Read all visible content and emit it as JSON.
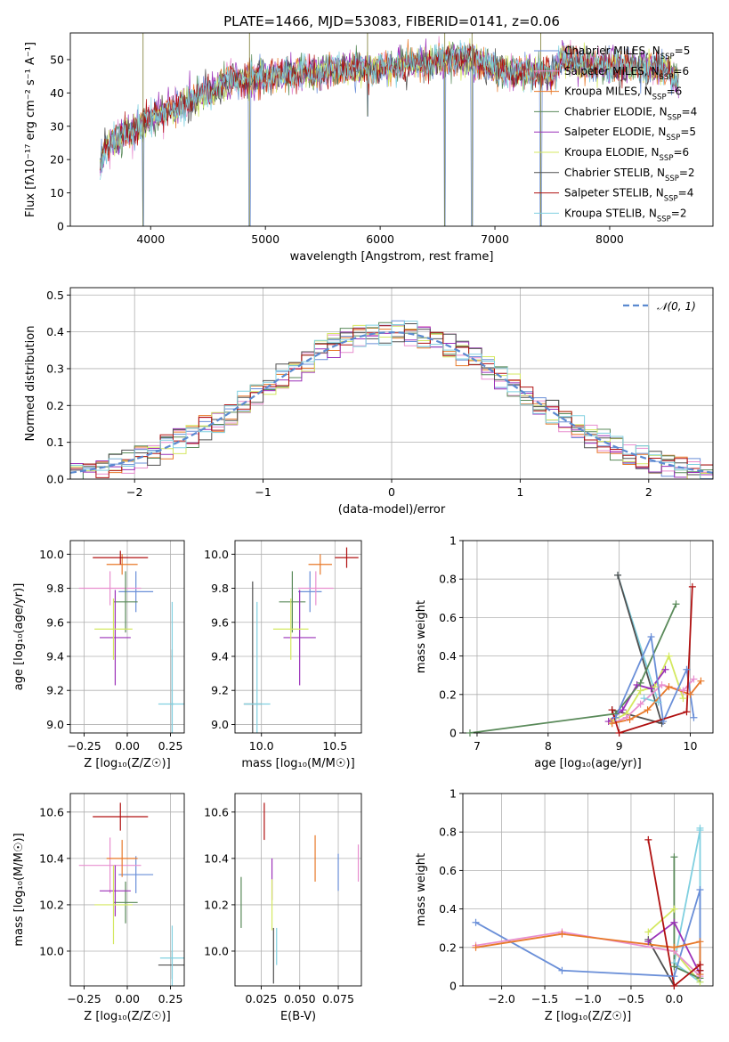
{
  "figure_title": "PLATE=1466, MJD=53083, FIBERID=0141, z=0.06",
  "colors": {
    "c0": "#6a8fd8",
    "c1": "#e88fcf",
    "c2": "#e8792a",
    "c3": "#5a8a5a",
    "c4": "#9b30b8",
    "c5": "#d4e860",
    "c6": "#505050",
    "c7": "#b01010",
    "c8": "#80d0e0"
  },
  "chart_data": [
    {
      "id": "spectrum",
      "type": "line",
      "title": "PLATE=1466, MJD=53083, FIBERID=0141, z=0.06",
      "xlabel": "wavelength [Angstrom, rest frame]",
      "ylabel": "Flux [fλ10⁻¹⁷ erg cm⁻² s⁻¹ A⁻¹]",
      "xlim": [
        3300,
        8900
      ],
      "ylim": [
        0,
        58
      ],
      "xticks": [
        4000,
        5000,
        6000,
        7000,
        8000
      ],
      "yticks": [
        0,
        10,
        20,
        30,
        40,
        50
      ],
      "grid": false,
      "legend_position": "right",
      "series": [
        {
          "name": "Chabrier MILES, N_SSP=5",
          "color_key": "c0"
        },
        {
          "name": "Salpeter MILES, N_SSP=6",
          "color_key": "c1"
        },
        {
          "name": "Kroupa MILES, N_SSP=6",
          "color_key": "c2"
        },
        {
          "name": "Chabrier ELODIE, N_SSP=4",
          "color_key": "c3"
        },
        {
          "name": "Salpeter ELODIE, N_SSP=5",
          "color_key": "c4"
        },
        {
          "name": "Kroupa ELODIE, N_SSP=6",
          "color_key": "c5"
        },
        {
          "name": "Chabrier STELIB, N_SSP=2",
          "color_key": "c6"
        },
        {
          "name": "Salpeter STELIB, N_SSP=4",
          "color_key": "c7"
        },
        {
          "name": "Kroupa STELIB, N_SSP=2",
          "color_key": "c8"
        }
      ],
      "envelope": {
        "x": [
          3560,
          3600,
          3700,
          3800,
          3900,
          4000,
          4100,
          4200,
          4300,
          4400,
          4500,
          4600,
          4700,
          4800,
          4900,
          5000,
          5200,
          5400,
          5600,
          5800,
          6000,
          6200,
          6400,
          6600,
          6800,
          7000,
          7200,
          7400,
          7500,
          7600,
          7800,
          8000,
          8200,
          8400,
          8500,
          8600
        ],
        "y": [
          17,
          24,
          26,
          28,
          30,
          32,
          34,
          35,
          37,
          39,
          40,
          42,
          44,
          44,
          44,
          45,
          46,
          46,
          47,
          47,
          48,
          48,
          49,
          50,
          50,
          47,
          46,
          46,
          45,
          51,
          48,
          48,
          48,
          47,
          47,
          43
        ]
      },
      "absorption_lines": [
        {
          "x": 3934,
          "depth": 0
        },
        {
          "x": 4861,
          "depth": 0
        },
        {
          "x": 5890,
          "depth": 33
        },
        {
          "x": 6563,
          "depth": 0
        },
        {
          "x": 6800,
          "depth": 0
        },
        {
          "x": 7400,
          "depth": 0
        }
      ]
    },
    {
      "id": "residuals",
      "type": "histogram",
      "xlabel": "(data-model)/error",
      "ylabel": "Normed distribution",
      "xlim": [
        -2.5,
        2.5
      ],
      "ylim": [
        0,
        0.52
      ],
      "xticks": [
        -2,
        -1,
        0,
        1,
        2
      ],
      "yticks": [
        0.0,
        0.1,
        0.2,
        0.3,
        0.4,
        0.5
      ],
      "grid": true,
      "legend": {
        "label": "𝒩(0, 1)",
        "position": "top-right"
      },
      "bin_width": 0.1,
      "reference_curve": "normal(0,1)"
    },
    {
      "id": "z-age",
      "type": "errorbar",
      "xlabel": "Z [log₁₀(Z/Z☉)]",
      "ylabel": "age  [log₁₀(age/yr)]",
      "xlim": [
        -0.33,
        0.33
      ],
      "ylim": [
        8.95,
        10.08
      ],
      "xticks": [
        -0.25,
        0.0,
        0.25
      ],
      "xticklabels": [
        "−0.25",
        "0.00",
        "0.25"
      ],
      "yticks": [
        9.0,
        9.2,
        9.4,
        9.6,
        9.8,
        10.0
      ],
      "yticklabels": [
        "9.0",
        "9.2",
        "9.4",
        "9.6",
        "9.8",
        "10.0"
      ],
      "grid": true,
      "points": [
        {
          "c": "c0",
          "x": 0.05,
          "y": 9.78,
          "xerr": 0.1,
          "yerr": 0.12
        },
        {
          "c": "c1",
          "x": -0.1,
          "y": 9.8,
          "xerr": 0.18,
          "yerr": 0.1
        },
        {
          "c": "c2",
          "x": -0.03,
          "y": 9.94,
          "xerr": 0.09,
          "yerr": 0.06
        },
        {
          "c": "c3",
          "x": -0.01,
          "y": 9.72,
          "xerr": 0.07,
          "yerr": 0.18
        },
        {
          "c": "c4",
          "x": -0.07,
          "y": 9.51,
          "xerr": 0.09,
          "yerr": 0.28
        },
        {
          "c": "c5",
          "x": -0.08,
          "y": 9.56,
          "xerr": 0.11,
          "yerr": 0.18
        },
        {
          "c": "c6",
          "x": 0.26,
          "y": 9.12,
          "xerr": 0.01,
          "yerr": 0.32
        },
        {
          "c": "c7",
          "x": -0.04,
          "y": 9.98,
          "xerr": 0.16,
          "yerr": 0.04
        },
        {
          "c": "c8",
          "x": 0.26,
          "y": 9.12,
          "xerr": 0.08,
          "yerr": 0.6
        }
      ]
    },
    {
      "id": "mass-age",
      "type": "errorbar",
      "xlabel": "mass [log₁₀(M/M☉)]",
      "ylabel": "",
      "xlim": [
        9.82,
        10.68
      ],
      "ylim": [
        8.95,
        10.08
      ],
      "xticks": [
        10.0,
        10.5
      ],
      "xticklabels": [
        "10.0",
        "10.5"
      ],
      "yticks": [
        9.0,
        9.2,
        9.4,
        9.6,
        9.8,
        10.0
      ],
      "yticklabels": [
        "9.0",
        "9.2",
        "9.4",
        "9.6",
        "9.8",
        "10.0"
      ],
      "grid": true,
      "points": [
        {
          "c": "c0",
          "x": 10.33,
          "y": 9.78,
          "xerr": 0.08,
          "yerr": 0.12
        },
        {
          "c": "c1",
          "x": 10.37,
          "y": 9.8,
          "xerr": 0.12,
          "yerr": 0.1
        },
        {
          "c": "c2",
          "x": 10.4,
          "y": 9.94,
          "xerr": 0.08,
          "yerr": 0.06
        },
        {
          "c": "c3",
          "x": 10.21,
          "y": 9.72,
          "xerr": 0.09,
          "yerr": 0.18
        },
        {
          "c": "c4",
          "x": 10.26,
          "y": 9.51,
          "xerr": 0.11,
          "yerr": 0.28
        },
        {
          "c": "c5",
          "x": 10.2,
          "y": 9.56,
          "xerr": 0.12,
          "yerr": 0.18
        },
        {
          "c": "c6",
          "x": 9.94,
          "y": 9.12,
          "xerr": 0.06,
          "yerr": 0.72
        },
        {
          "c": "c7",
          "x": 10.58,
          "y": 9.98,
          "xerr": 0.08,
          "yerr": 0.06
        },
        {
          "c": "c8",
          "x": 9.97,
          "y": 9.12,
          "xerr": 0.09,
          "yerr": 0.6
        }
      ]
    },
    {
      "id": "weight-age",
      "type": "line",
      "xlabel": "age  [log₁₀(age/yr)]",
      "ylabel": "mass weight",
      "xlim": [
        6.8,
        10.32
      ],
      "ylim": [
        0,
        1.0
      ],
      "xticks": [
        7,
        8,
        9,
        10
      ],
      "yticks": [
        0.0,
        0.2,
        0.4,
        0.6,
        0.8,
        1.0
      ],
      "grid": true,
      "series": [
        {
          "c": "c8",
          "x": [
            8.98,
            9.55,
            9.35
          ],
          "y": [
            0.82,
            0.16,
            0.18
          ]
        },
        {
          "c": "c6",
          "x": [
            8.9,
            9.6,
            8.98
          ],
          "y": [
            0.12,
            0.05,
            0.82
          ]
        },
        {
          "c": "c5",
          "x": [
            8.88,
            9.1,
            9.3,
            9.5,
            9.7,
            9.9
          ],
          "y": [
            0.06,
            0.1,
            0.22,
            0.24,
            0.4,
            0.18
          ]
        },
        {
          "c": "c4",
          "x": [
            8.85,
            9.05,
            9.25,
            9.45,
            9.65
          ],
          "y": [
            0.06,
            0.12,
            0.25,
            0.23,
            0.33
          ]
        },
        {
          "c": "c1",
          "x": [
            8.9,
            9.1,
            9.3,
            9.6,
            9.9,
            10.05
          ],
          "y": [
            0.05,
            0.08,
            0.15,
            0.25,
            0.22,
            0.28
          ]
        },
        {
          "c": "c2",
          "x": [
            8.9,
            9.15,
            9.4,
            9.7,
            10.0,
            10.15
          ],
          "y": [
            0.05,
            0.07,
            0.12,
            0.24,
            0.2,
            0.27
          ]
        },
        {
          "c": "c3",
          "x": [
            6.9,
            8.95,
            9.3,
            9.8
          ],
          "y": [
            0.0,
            0.1,
            0.26,
            0.67
          ]
        },
        {
          "c": "c0",
          "x": [
            8.95,
            9.45,
            9.62,
            9.95,
            10.05
          ],
          "y": [
            0.08,
            0.5,
            0.06,
            0.33,
            0.08
          ]
        },
        {
          "c": "c7",
          "x": [
            8.9,
            9.0,
            9.95,
            10.03
          ],
          "y": [
            0.12,
            0.0,
            0.11,
            0.76
          ]
        }
      ]
    },
    {
      "id": "z-mass",
      "type": "errorbar",
      "xlabel": "Z [log₁₀(Z/Z☉)]",
      "ylabel": "mass [log₁₀(M/M☉)]",
      "xlim": [
        -0.33,
        0.33
      ],
      "ylim": [
        9.85,
        10.68
      ],
      "xticks": [
        -0.25,
        0.0,
        0.25
      ],
      "xticklabels": [
        "−0.25",
        "0.00",
        "0.25"
      ],
      "yticks": [
        10.0,
        10.2,
        10.4,
        10.6
      ],
      "yticklabels": [
        "10.0",
        "10.2",
        "10.4",
        "10.6"
      ],
      "grid": true,
      "points": [
        {
          "c": "c0",
          "x": 0.05,
          "y": 10.33,
          "xerr": 0.1,
          "yerr": 0.08
        },
        {
          "c": "c1",
          "x": -0.1,
          "y": 10.37,
          "xerr": 0.18,
          "yerr": 0.12
        },
        {
          "c": "c2",
          "x": -0.03,
          "y": 10.4,
          "xerr": 0.09,
          "yerr": 0.08
        },
        {
          "c": "c3",
          "x": -0.01,
          "y": 10.21,
          "xerr": 0.07,
          "yerr": 0.09
        },
        {
          "c": "c4",
          "x": -0.07,
          "y": 10.26,
          "xerr": 0.09,
          "yerr": 0.11
        },
        {
          "c": "c5",
          "x": -0.08,
          "y": 10.2,
          "xerr": 0.11,
          "yerr": 0.17
        },
        {
          "c": "c6",
          "x": 0.26,
          "y": 9.94,
          "xerr": 0.08,
          "yerr": 0.06
        },
        {
          "c": "c7",
          "x": -0.04,
          "y": 10.58,
          "xerr": 0.16,
          "yerr": 0.06
        },
        {
          "c": "c8",
          "x": 0.26,
          "y": 9.97,
          "xerr": 0.07,
          "yerr": 0.14
        }
      ]
    },
    {
      "id": "ebv-mass",
      "type": "errorbar",
      "xlabel": "E(B-V)",
      "ylabel": "",
      "xlim": [
        0.008,
        0.09
      ],
      "ylim": [
        9.85,
        10.68
      ],
      "xticks": [
        0.025,
        0.05,
        0.075
      ],
      "xticklabels": [
        "0.025",
        "0.050",
        "0.075"
      ],
      "yticks": [
        10.0,
        10.2,
        10.4,
        10.6
      ],
      "yticklabels": [
        "10.0",
        "10.2",
        "10.4",
        "10.6"
      ],
      "grid": true,
      "points": [
        {
          "c": "c0",
          "x": 0.075,
          "y": 10.34,
          "xerr": 0,
          "yerr": 0.08
        },
        {
          "c": "c1",
          "x": 0.088,
          "y": 10.38,
          "xerr": 0,
          "yerr": 0.08
        },
        {
          "c": "c2",
          "x": 0.06,
          "y": 10.4,
          "xerr": 0,
          "yerr": 0.1
        },
        {
          "c": "c3",
          "x": 0.012,
          "y": 10.21,
          "xerr": 0,
          "yerr": 0.11
        },
        {
          "c": "c4",
          "x": 0.032,
          "y": 10.31,
          "xerr": 0,
          "yerr": 0.09
        },
        {
          "c": "c5",
          "x": 0.032,
          "y": 10.2,
          "xerr": 0,
          "yerr": 0.11
        },
        {
          "c": "c6",
          "x": 0.033,
          "y": 9.98,
          "xerr": 0,
          "yerr": 0.12
        },
        {
          "c": "c7",
          "x": 0.027,
          "y": 10.56,
          "xerr": 0,
          "yerr": 0.08
        },
        {
          "c": "c8",
          "x": 0.035,
          "y": 10.02,
          "xerr": 0,
          "yerr": 0.08
        }
      ]
    },
    {
      "id": "weight-z",
      "type": "line",
      "xlabel": "Z [log₁₀(Z/Z☉)]",
      "ylabel": "mass weight",
      "xlim": [
        -2.45,
        0.45
      ],
      "ylim": [
        0,
        1.0
      ],
      "xticks": [
        -2.0,
        -1.5,
        -1.0,
        -0.5,
        0.0
      ],
      "xticklabels": [
        "−2.0",
        "−1.5",
        "−1.0",
        "−0.5",
        "0.0"
      ],
      "yticks": [
        0.0,
        0.2,
        0.4,
        0.6,
        0.8,
        1.0
      ],
      "grid": true,
      "series": [
        {
          "c": "c8",
          "x": [
            0.3,
            0.3,
            0.0,
            0.3
          ],
          "y": [
            0.82,
            0.02,
            0.12,
            0.81
          ]
        },
        {
          "c": "c6",
          "x": [
            -0.3,
            0.0
          ],
          "y": [
            0.24,
            0.0
          ]
        },
        {
          "c": "c5",
          "x": [
            -0.3,
            0.0,
            0.0,
            0.3
          ],
          "y": [
            0.28,
            0.4,
            0.18,
            0.02
          ]
        },
        {
          "c": "c4",
          "x": [
            -0.3,
            0.0,
            0.3
          ],
          "y": [
            0.23,
            0.33,
            0.06
          ]
        },
        {
          "c": "c3",
          "x": [
            0.0,
            0.0,
            0.3
          ],
          "y": [
            0.67,
            0.1,
            0.04
          ]
        },
        {
          "c": "c0",
          "x": [
            -2.3,
            -1.3,
            0.0,
            0.3,
            0.3
          ],
          "y": [
            0.33,
            0.08,
            0.05,
            0.5,
            0.08
          ]
        },
        {
          "c": "c1",
          "x": [
            -2.3,
            -1.3,
            0.0,
            0.3
          ],
          "y": [
            0.21,
            0.28,
            0.18,
            0.05
          ]
        },
        {
          "c": "c2",
          "x": [
            -2.3,
            -1.3,
            0.0,
            0.3,
            0.3
          ],
          "y": [
            0.2,
            0.27,
            0.2,
            0.23,
            0.06
          ]
        },
        {
          "c": "c7",
          "x": [
            -0.3,
            0.0,
            0.3,
            0.3
          ],
          "y": [
            0.76,
            0.0,
            0.11,
            0.08
          ]
        }
      ]
    }
  ]
}
